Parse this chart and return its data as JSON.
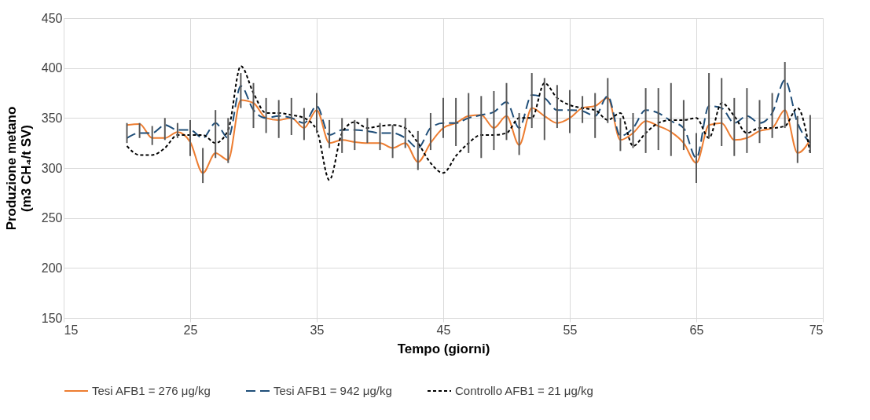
{
  "chart_data": {
    "type": "line",
    "xlabel": "Tempo (giorni)",
    "ylabel": "Produzione metano\n(m3 CH₄/t SV)",
    "x": [
      20,
      21,
      22,
      23,
      24,
      25,
      26,
      27,
      28,
      29,
      30,
      31,
      32,
      33,
      34,
      35,
      36,
      37,
      38,
      39,
      40,
      41,
      42,
      43,
      44,
      45,
      46,
      47,
      48,
      49,
      50,
      51,
      52,
      53,
      54,
      55,
      56,
      57,
      58,
      59,
      60,
      61,
      62,
      63,
      64,
      65,
      66,
      67,
      68,
      69,
      70,
      71,
      72,
      73,
      74
    ],
    "xlim": [
      15,
      75
    ],
    "xticks": [
      15,
      25,
      35,
      45,
      55,
      65,
      75
    ],
    "ylim": [
      150,
      450
    ],
    "yticks": [
      150,
      200,
      250,
      300,
      350,
      400,
      450
    ],
    "grid": true,
    "legend": "bottom",
    "marker": "none",
    "series": [
      {
        "name": "Tesi AFB1 = 276 μg/kg",
        "color": "#ed7d31",
        "line_style": "solid",
        "values": [
          343,
          344,
          330,
          330,
          336,
          326,
          295,
          315,
          308,
          368,
          365,
          350,
          348,
          350,
          340,
          358,
          325,
          328,
          326,
          325,
          325,
          320,
          325,
          306,
          325,
          340,
          345,
          352,
          353,
          340,
          352,
          323,
          360,
          352,
          345,
          350,
          360,
          362,
          370,
          328,
          335,
          347,
          342,
          336,
          325,
          305,
          343,
          345,
          328,
          330,
          337,
          340,
          358,
          315,
          328
        ]
      },
      {
        "name": "Tesi AFB1 = 942 μg/kg",
        "color": "#1f4e79",
        "line_style": "dashed",
        "values": [
          330,
          335,
          335,
          343,
          338,
          338,
          330,
          345,
          330,
          382,
          358,
          350,
          352,
          350,
          345,
          362,
          333,
          338,
          338,
          337,
          335,
          335,
          330,
          320,
          340,
          345,
          345,
          350,
          353,
          356,
          366,
          340,
          373,
          370,
          358,
          358,
          357,
          352,
          372,
          332,
          340,
          358,
          355,
          347,
          340,
          310,
          362,
          360,
          345,
          352,
          345,
          355,
          388,
          345,
          325
        ],
        "errors": [
          [
            325,
            345
          ],
          [
            330,
            345
          ],
          [
            323,
            342
          ],
          [
            328,
            350
          ],
          [
            330,
            345
          ],
          [
            312,
            348
          ],
          [
            285,
            320
          ],
          [
            310,
            358
          ],
          [
            305,
            350
          ],
          [
            360,
            395
          ],
          [
            340,
            385
          ],
          [
            335,
            370
          ],
          [
            330,
            368
          ],
          [
            333,
            370
          ],
          [
            328,
            360
          ],
          [
            335,
            375
          ],
          [
            320,
            348
          ],
          [
            315,
            350
          ],
          [
            318,
            348
          ],
          [
            325,
            350
          ],
          [
            318,
            345
          ],
          [
            310,
            343
          ],
          [
            320,
            350
          ],
          [
            298,
            337
          ],
          [
            318,
            355
          ],
          [
            330,
            370
          ],
          [
            322,
            370
          ],
          [
            315,
            375
          ],
          [
            310,
            372
          ],
          [
            318,
            377
          ],
          [
            328,
            385
          ],
          [
            313,
            355
          ],
          [
            340,
            395
          ],
          [
            328,
            390
          ],
          [
            340,
            383
          ],
          [
            335,
            378
          ],
          [
            345,
            372
          ],
          [
            330,
            375
          ],
          [
            345,
            390
          ],
          [
            317,
            350
          ],
          [
            320,
            355
          ],
          [
            315,
            380
          ],
          [
            318,
            380
          ],
          [
            312,
            385
          ],
          [
            318,
            368
          ],
          [
            285,
            335
          ],
          [
            330,
            395
          ],
          [
            322,
            390
          ],
          [
            312,
            370
          ],
          [
            315,
            380
          ],
          [
            325,
            368
          ],
          [
            330,
            375
          ],
          [
            340,
            406
          ],
          [
            305,
            352
          ],
          [
            315,
            353
          ]
        ]
      },
      {
        "name": "Controllo AFB1 = 21 μg/kg",
        "color": "#000000",
        "line_style": "dotted",
        "values": [
          322,
          313,
          313,
          320,
          333,
          333,
          333,
          325,
          338,
          402,
          375,
          355,
          355,
          353,
          350,
          338,
          288,
          335,
          346,
          340,
          342,
          343,
          340,
          325,
          305,
          295,
          312,
          325,
          333,
          333,
          335,
          350,
          350,
          385,
          370,
          363,
          360,
          358,
          348,
          355,
          322,
          335,
          345,
          348,
          348,
          350,
          330,
          365,
          352,
          335,
          340,
          340,
          342,
          360,
          315
        ]
      }
    ]
  }
}
